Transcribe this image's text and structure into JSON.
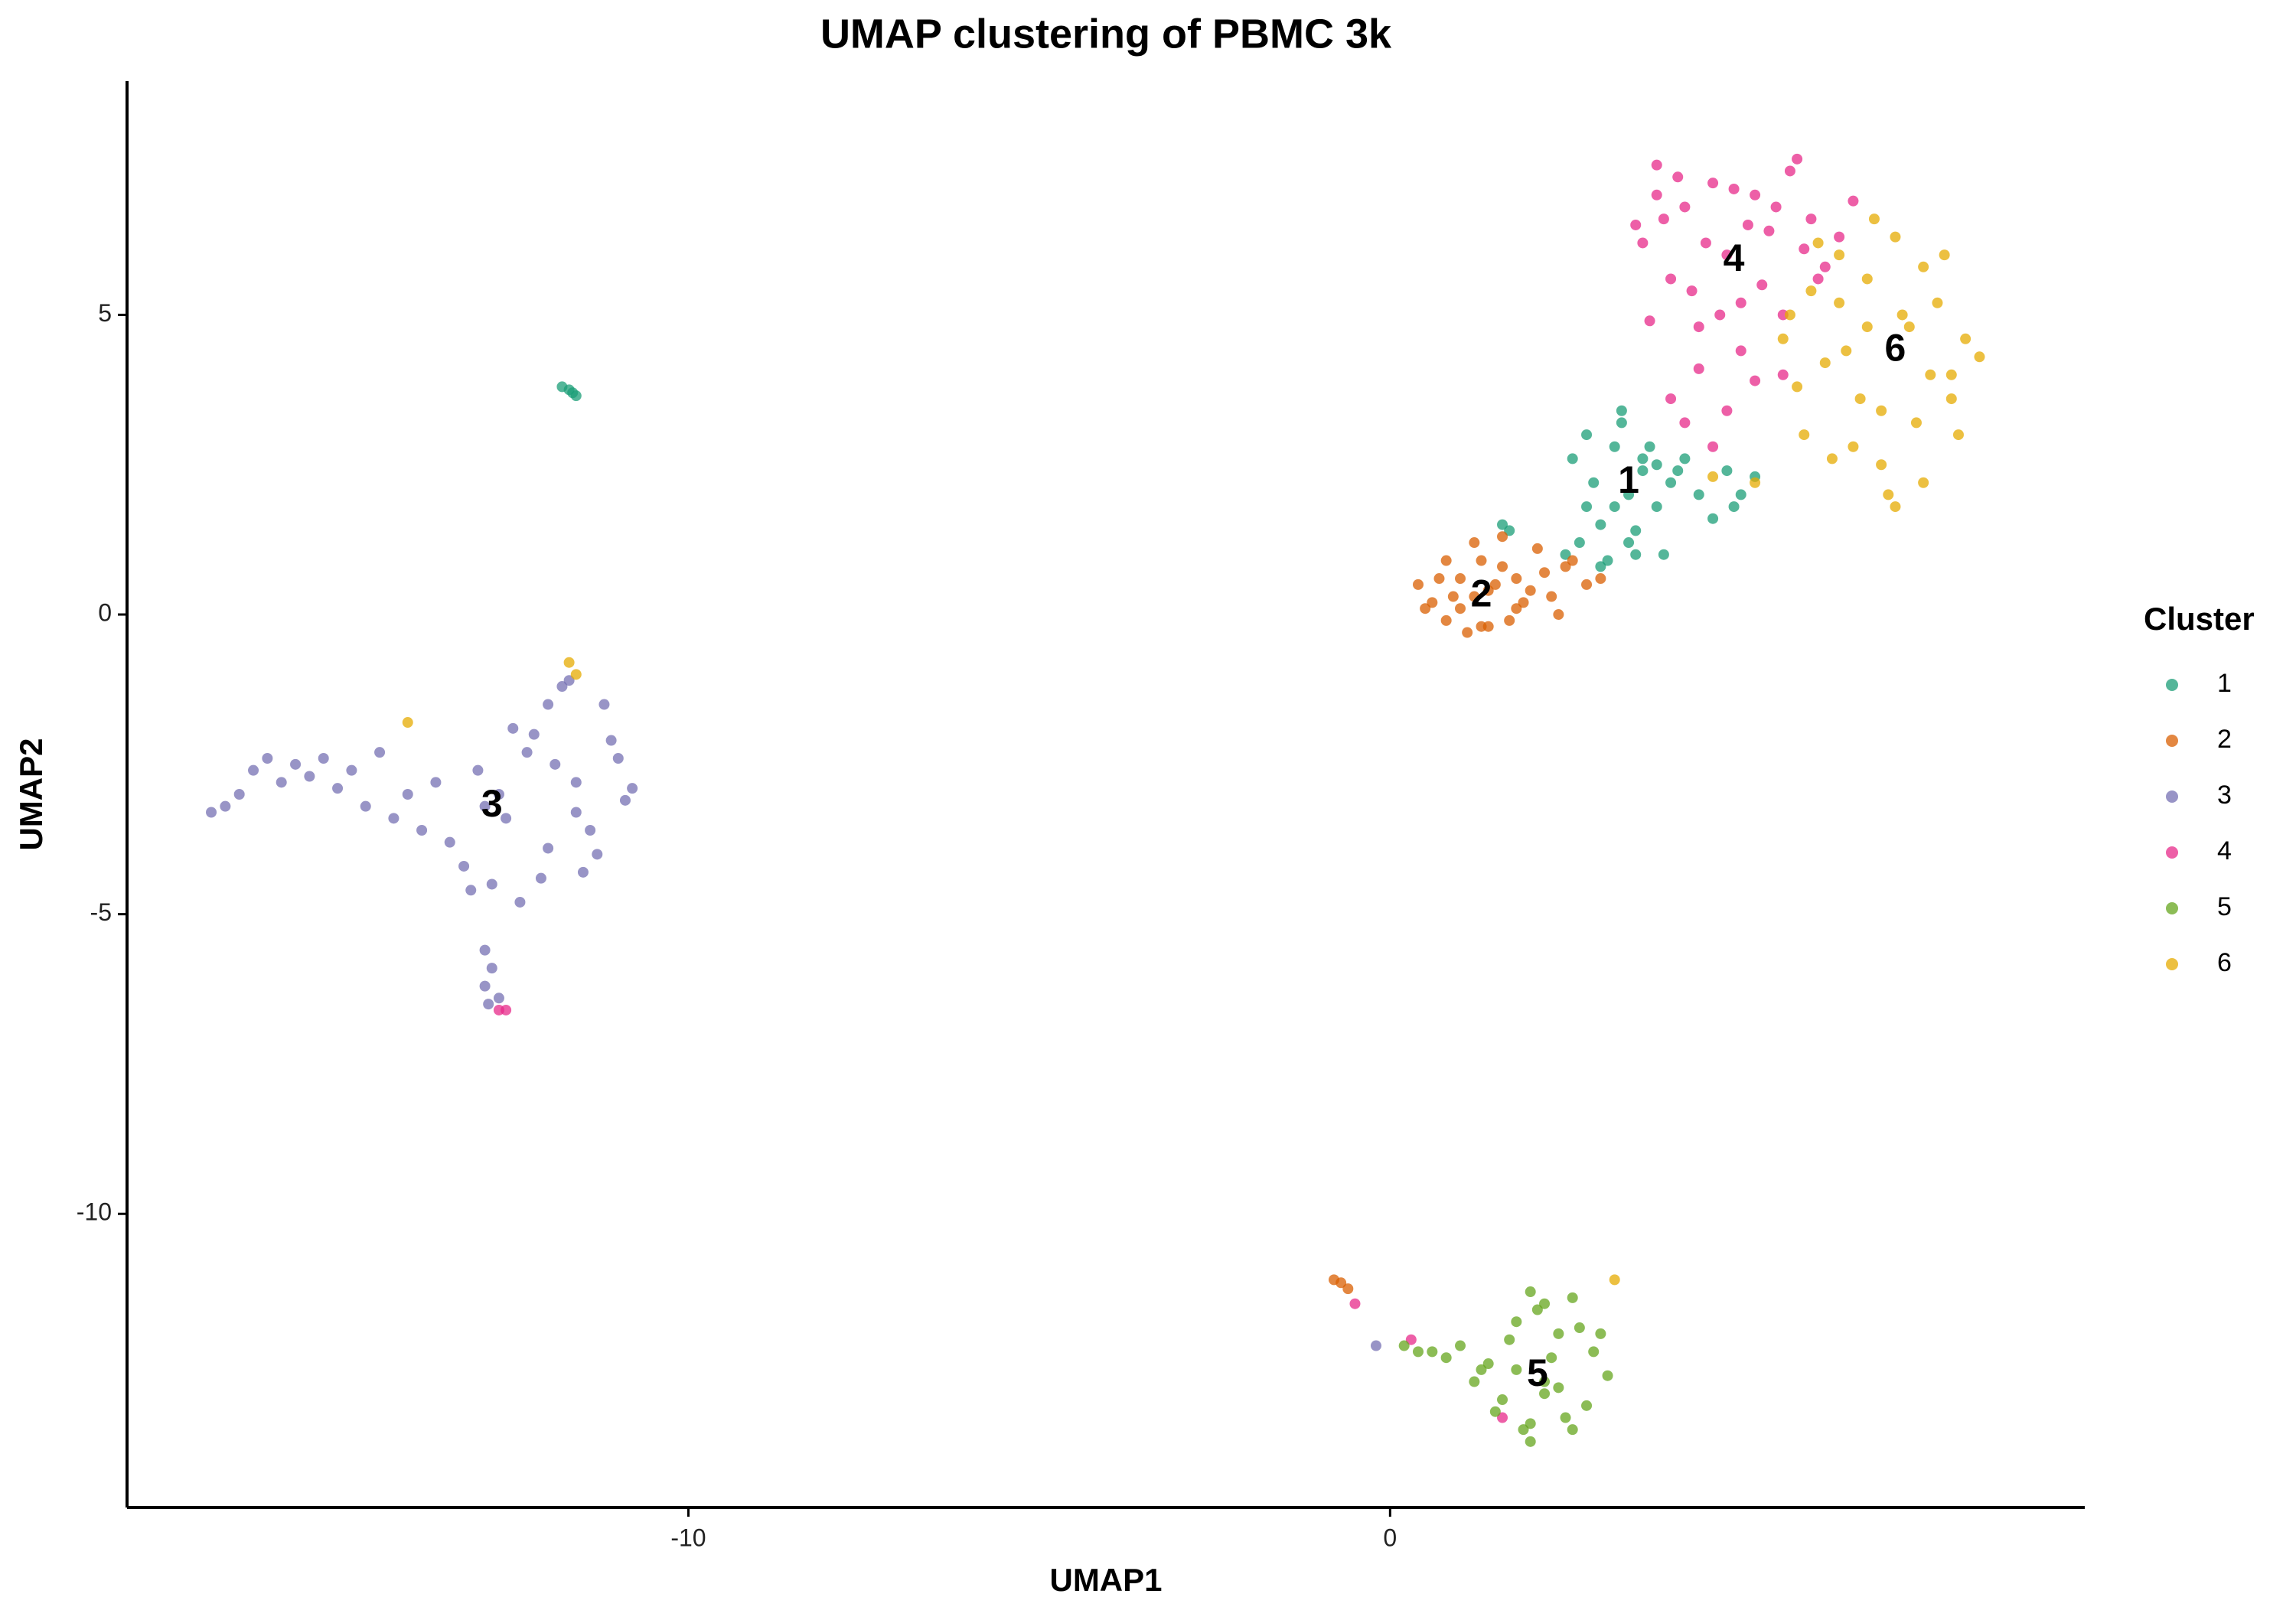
{
  "chart_data": {
    "type": "scatter",
    "title": "UMAP clustering of PBMC 3k",
    "x_label": "UMAP1",
    "y_label": "UMAP2",
    "legend_title": "Cluster",
    "legend": "right",
    "grid": false,
    "xlim": [
      -18.0,
      9.9
    ],
    "ylim": [
      -14.9,
      8.9
    ],
    "xticks": [
      -10,
      0
    ],
    "yticks": [
      5,
      0,
      -5,
      -10
    ],
    "series": [
      {
        "name": "1",
        "color": "#1b9e77",
        "x": [
          2.6,
          2.8,
          3.0,
          3.2,
          3.4,
          3.6,
          3.8,
          4.0,
          4.2,
          4.4,
          4.6,
          4.8,
          5.0,
          2.7,
          2.9,
          3.1,
          3.3,
          3.5,
          3.7,
          3.9,
          4.1,
          3.0,
          3.2,
          3.4,
          3.6,
          2.5,
          2.8,
          3.3,
          3.5,
          3.8,
          1.6,
          1.7,
          4.9,
          5.2,
          -11.8,
          -11.7,
          -11.65,
          -11.6
        ],
        "values": [
          2.6,
          3.0,
          1.5,
          2.8,
          2.0,
          2.4,
          1.8,
          2.2,
          2.6,
          2.0,
          1.6,
          2.4,
          2.0,
          1.2,
          2.2,
          0.9,
          3.2,
          1.4,
          2.8,
          1.0,
          2.4,
          0.8,
          1.8,
          1.2,
          2.6,
          1.0,
          1.8,
          3.4,
          1.0,
          2.5,
          1.5,
          1.4,
          1.8,
          2.3,
          3.8,
          3.75,
          3.7,
          3.65
        ]
      },
      {
        "name": "2",
        "color": "#d95f02",
        "x": [
          0.4,
          0.6,
          0.8,
          1.0,
          1.2,
          1.4,
          1.6,
          1.8,
          2.0,
          2.2,
          2.4,
          2.6,
          2.8,
          3.0,
          0.5,
          0.7,
          0.9,
          1.1,
          1.3,
          1.5,
          1.7,
          1.9,
          2.1,
          2.3,
          2.5,
          0.8,
          1.0,
          1.2,
          1.4,
          1.6,
          1.8,
          1.3,
          -0.8,
          -0.7,
          -0.6
        ],
        "values": [
          0.5,
          0.2,
          -0.1,
          0.6,
          0.3,
          -0.2,
          0.8,
          0.1,
          0.4,
          0.7,
          0.0,
          0.9,
          0.5,
          0.6,
          0.1,
          0.6,
          0.3,
          -0.3,
          0.9,
          0.5,
          -0.1,
          0.2,
          1.1,
          0.3,
          0.8,
          0.9,
          0.1,
          1.2,
          0.4,
          1.3,
          0.6,
          -0.2,
          -11.1,
          -11.15,
          -11.25
        ]
      },
      {
        "name": "3",
        "color": "#7570b3",
        "x": [
          -16.8,
          -16.6,
          -16.4,
          -16.2,
          -16.0,
          -15.8,
          -15.6,
          -15.4,
          -15.2,
          -15.0,
          -14.8,
          -14.6,
          -14.4,
          -14.2,
          -14.0,
          -13.8,
          -13.6,
          -13.4,
          -13.2,
          -13.0,
          -12.8,
          -12.6,
          -12.4,
          -12.2,
          -12.0,
          -11.8,
          -11.6,
          -11.4,
          -11.2,
          -11.0,
          -10.8,
          -12.9,
          -12.5,
          -12.1,
          -11.7,
          -11.3,
          -10.9,
          -13.1,
          -12.7,
          -12.3,
          -11.9,
          -11.5,
          -11.1,
          -12.0,
          -11.6,
          -12.9,
          -12.8,
          -12.9,
          -12.7,
          -12.85,
          -0.2
        ],
        "values": [
          -3.3,
          -3.2,
          -3.0,
          -2.6,
          -2.4,
          -2.8,
          -2.5,
          -2.7,
          -2.4,
          -2.9,
          -2.6,
          -3.2,
          -2.3,
          -3.4,
          -3.0,
          -3.6,
          -2.8,
          -3.8,
          -4.2,
          -2.6,
          -4.5,
          -3.4,
          -4.8,
          -2.0,
          -3.9,
          -1.2,
          -2.8,
          -3.6,
          -1.5,
          -2.4,
          -2.9,
          -3.2,
          -1.9,
          -4.4,
          -1.1,
          -4.0,
          -3.1,
          -4.6,
          -3.0,
          -2.3,
          -2.5,
          -4.3,
          -2.1,
          -1.5,
          -3.3,
          -5.6,
          -5.9,
          -6.2,
          -6.4,
          -6.5,
          -12.2
        ]
      },
      {
        "name": "4",
        "color": "#e7298a",
        "x": [
          3.6,
          3.8,
          4.0,
          4.2,
          4.4,
          4.6,
          4.8,
          5.0,
          5.2,
          5.4,
          5.6,
          5.8,
          6.0,
          6.2,
          6.4,
          6.6,
          3.7,
          3.9,
          4.1,
          4.3,
          4.5,
          4.7,
          4.9,
          5.1,
          5.3,
          5.5,
          5.7,
          5.9,
          6.1,
          4.0,
          4.4,
          4.8,
          5.2,
          5.6,
          3.5,
          4.6,
          5.0,
          3.8,
          4.2,
          -12.7,
          -12.6,
          -0.5,
          0.3,
          1.6
        ],
        "values": [
          6.2,
          7.5,
          5.6,
          6.8,
          4.8,
          7.2,
          6.0,
          5.2,
          7.0,
          6.4,
          5.0,
          7.6,
          6.6,
          5.8,
          6.3,
          6.9,
          4.9,
          6.6,
          7.3,
          5.4,
          6.2,
          5.0,
          7.1,
          6.5,
          5.5,
          6.8,
          7.4,
          6.1,
          5.6,
          3.6,
          4.1,
          3.4,
          3.9,
          4.0,
          6.5,
          2.8,
          4.4,
          7.0,
          3.2,
          -6.6,
          -6.6,
          -11.5,
          -12.1,
          -13.4
        ]
      },
      {
        "name": "5",
        "color": "#66a61e",
        "x": [
          0.2,
          0.4,
          0.6,
          0.8,
          1.0,
          1.2,
          1.4,
          1.6,
          1.8,
          2.0,
          2.2,
          2.4,
          2.6,
          2.8,
          3.0,
          3.1,
          1.5,
          1.7,
          1.9,
          2.1,
          2.3,
          2.5,
          2.7,
          2.9,
          1.8,
          2.0,
          2.2,
          2.4,
          2.6,
          2.0,
          2.2,
          1.3
        ],
        "values": [
          -12.2,
          -12.3,
          -12.3,
          -12.4,
          -12.2,
          -12.8,
          -12.5,
          -13.1,
          -11.8,
          -13.5,
          -11.5,
          -12.9,
          -11.4,
          -13.2,
          -12.0,
          -12.7,
          -13.3,
          -12.1,
          -13.6,
          -11.6,
          -12.4,
          -13.4,
          -11.9,
          -12.3,
          -12.6,
          -11.3,
          -13.0,
          -12.0,
          -13.6,
          -13.8,
          -12.8,
          -12.6
        ]
      },
      {
        "name": "6",
        "color": "#e6ab02",
        "x": [
          5.6,
          5.8,
          6.0,
          6.2,
          6.4,
          6.6,
          6.8,
          7.0,
          7.2,
          7.4,
          7.6,
          7.8,
          8.0,
          8.2,
          8.4,
          5.7,
          5.9,
          6.1,
          6.3,
          6.5,
          6.7,
          6.9,
          7.1,
          7.3,
          7.5,
          7.7,
          7.9,
          8.1,
          6.4,
          6.8,
          7.2,
          7.6,
          8.0,
          7.0,
          -11.7,
          -11.6,
          -14.0,
          3.2,
          5.2,
          4.6
        ],
        "values": [
          4.6,
          3.8,
          5.4,
          4.2,
          6.0,
          2.8,
          5.6,
          3.4,
          6.3,
          4.8,
          2.2,
          5.2,
          3.6,
          4.6,
          4.3,
          5.0,
          3.0,
          6.2,
          2.6,
          4.4,
          3.6,
          6.6,
          2.0,
          5.0,
          3.2,
          4.0,
          6.0,
          3.0,
          5.2,
          4.8,
          1.8,
          5.8,
          4.0,
          2.5,
          -0.8,
          -1.0,
          -1.8,
          -11.1,
          2.2,
          2.3
        ]
      }
    ],
    "annotations": [
      {
        "text": "1",
        "x": 3.4,
        "y": 2.2
      },
      {
        "text": "2",
        "x": 1.3,
        "y": 0.3
      },
      {
        "text": "3",
        "x": -12.8,
        "y": -3.2
      },
      {
        "text": "4",
        "x": 4.9,
        "y": 5.9
      },
      {
        "text": "5",
        "x": 2.1,
        "y": -12.7
      },
      {
        "text": "6",
        "x": 7.2,
        "y": 4.4
      }
    ]
  }
}
